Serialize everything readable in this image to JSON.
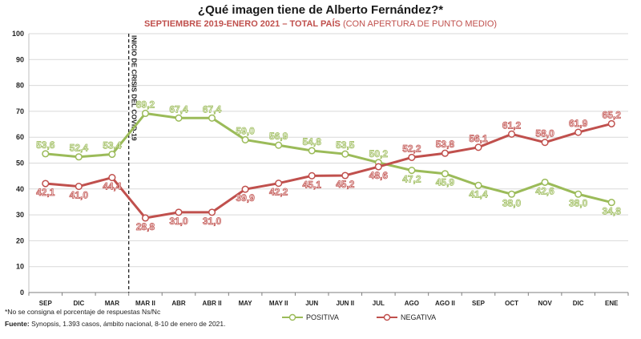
{
  "title": "¿Qué imagen tiene de Alberto Fernández?*",
  "subtitle_main": "SEPTIEMBRE 2019-ENERO 2021 – TOTAL PAÍS",
  "subtitle_note": "(CON APERTURA DE PUNTO MEDIO)",
  "annotation": "INICIO DE CRISIS DEL COVID-19",
  "footnote_1": "*No se consigna el porcentaje de respuestas Ns/Nc",
  "footnote_2_label": "Fuente:",
  "footnote_2": "Synopsis, 1.393 casos, ámbito nacional, 8-10 de enero de 2021.",
  "colors": {
    "positiva": "#9bbb59",
    "negativa": "#c0504d",
    "positiva_fill": "#ebf1de",
    "negativa_fill": "#f2dcdb"
  },
  "chart_data": {
    "type": "line",
    "categories": [
      "SEP",
      "DIC",
      "MAR",
      "MAR II",
      "ABR",
      "ABR II",
      "MAY",
      "MAY II",
      "JUN",
      "JUN II",
      "JUL",
      "AGO",
      "AGO II",
      "SEP",
      "OCT",
      "NOV",
      "DIC",
      "ENE"
    ],
    "ylim": [
      0,
      100
    ],
    "yticks": [
      0,
      10,
      20,
      30,
      40,
      50,
      60,
      70,
      80,
      90,
      100
    ],
    "grid": true,
    "legend_position": "bottom",
    "series": [
      {
        "name": "POSITIVA",
        "values": [
          53.6,
          52.4,
          53.4,
          69.2,
          67.4,
          67.4,
          59.0,
          56.9,
          54.8,
          53.5,
          50.2,
          47.2,
          45.9,
          41.4,
          38.0,
          42.6,
          38.0,
          34.8
        ],
        "labels": [
          "53,6",
          "52,4",
          "53,4",
          "69,2",
          "67,4",
          "67,4",
          "59,0",
          "56,9",
          "54,8",
          "53,5",
          "50,2",
          "47,2",
          "45,9",
          "41,4",
          "38,0",
          "42,6",
          "38,0",
          "34,8"
        ]
      },
      {
        "name": "NEGATIVA",
        "values": [
          42.1,
          41.0,
          44.4,
          28.8,
          31.0,
          31.0,
          39.9,
          42.2,
          45.1,
          45.2,
          48.6,
          52.2,
          53.8,
          56.1,
          61.2,
          58.0,
          61.9,
          65.2
        ],
        "labels": [
          "42,1",
          "41,0",
          "44,4",
          "28,8",
          "31,0",
          "31,0",
          "39,9",
          "42,2",
          "45,1",
          "45,2",
          "48,6",
          "52,2",
          "53,8",
          "56,1",
          "61,2",
          "58,0",
          "61,9",
          "65,2"
        ]
      }
    ]
  }
}
